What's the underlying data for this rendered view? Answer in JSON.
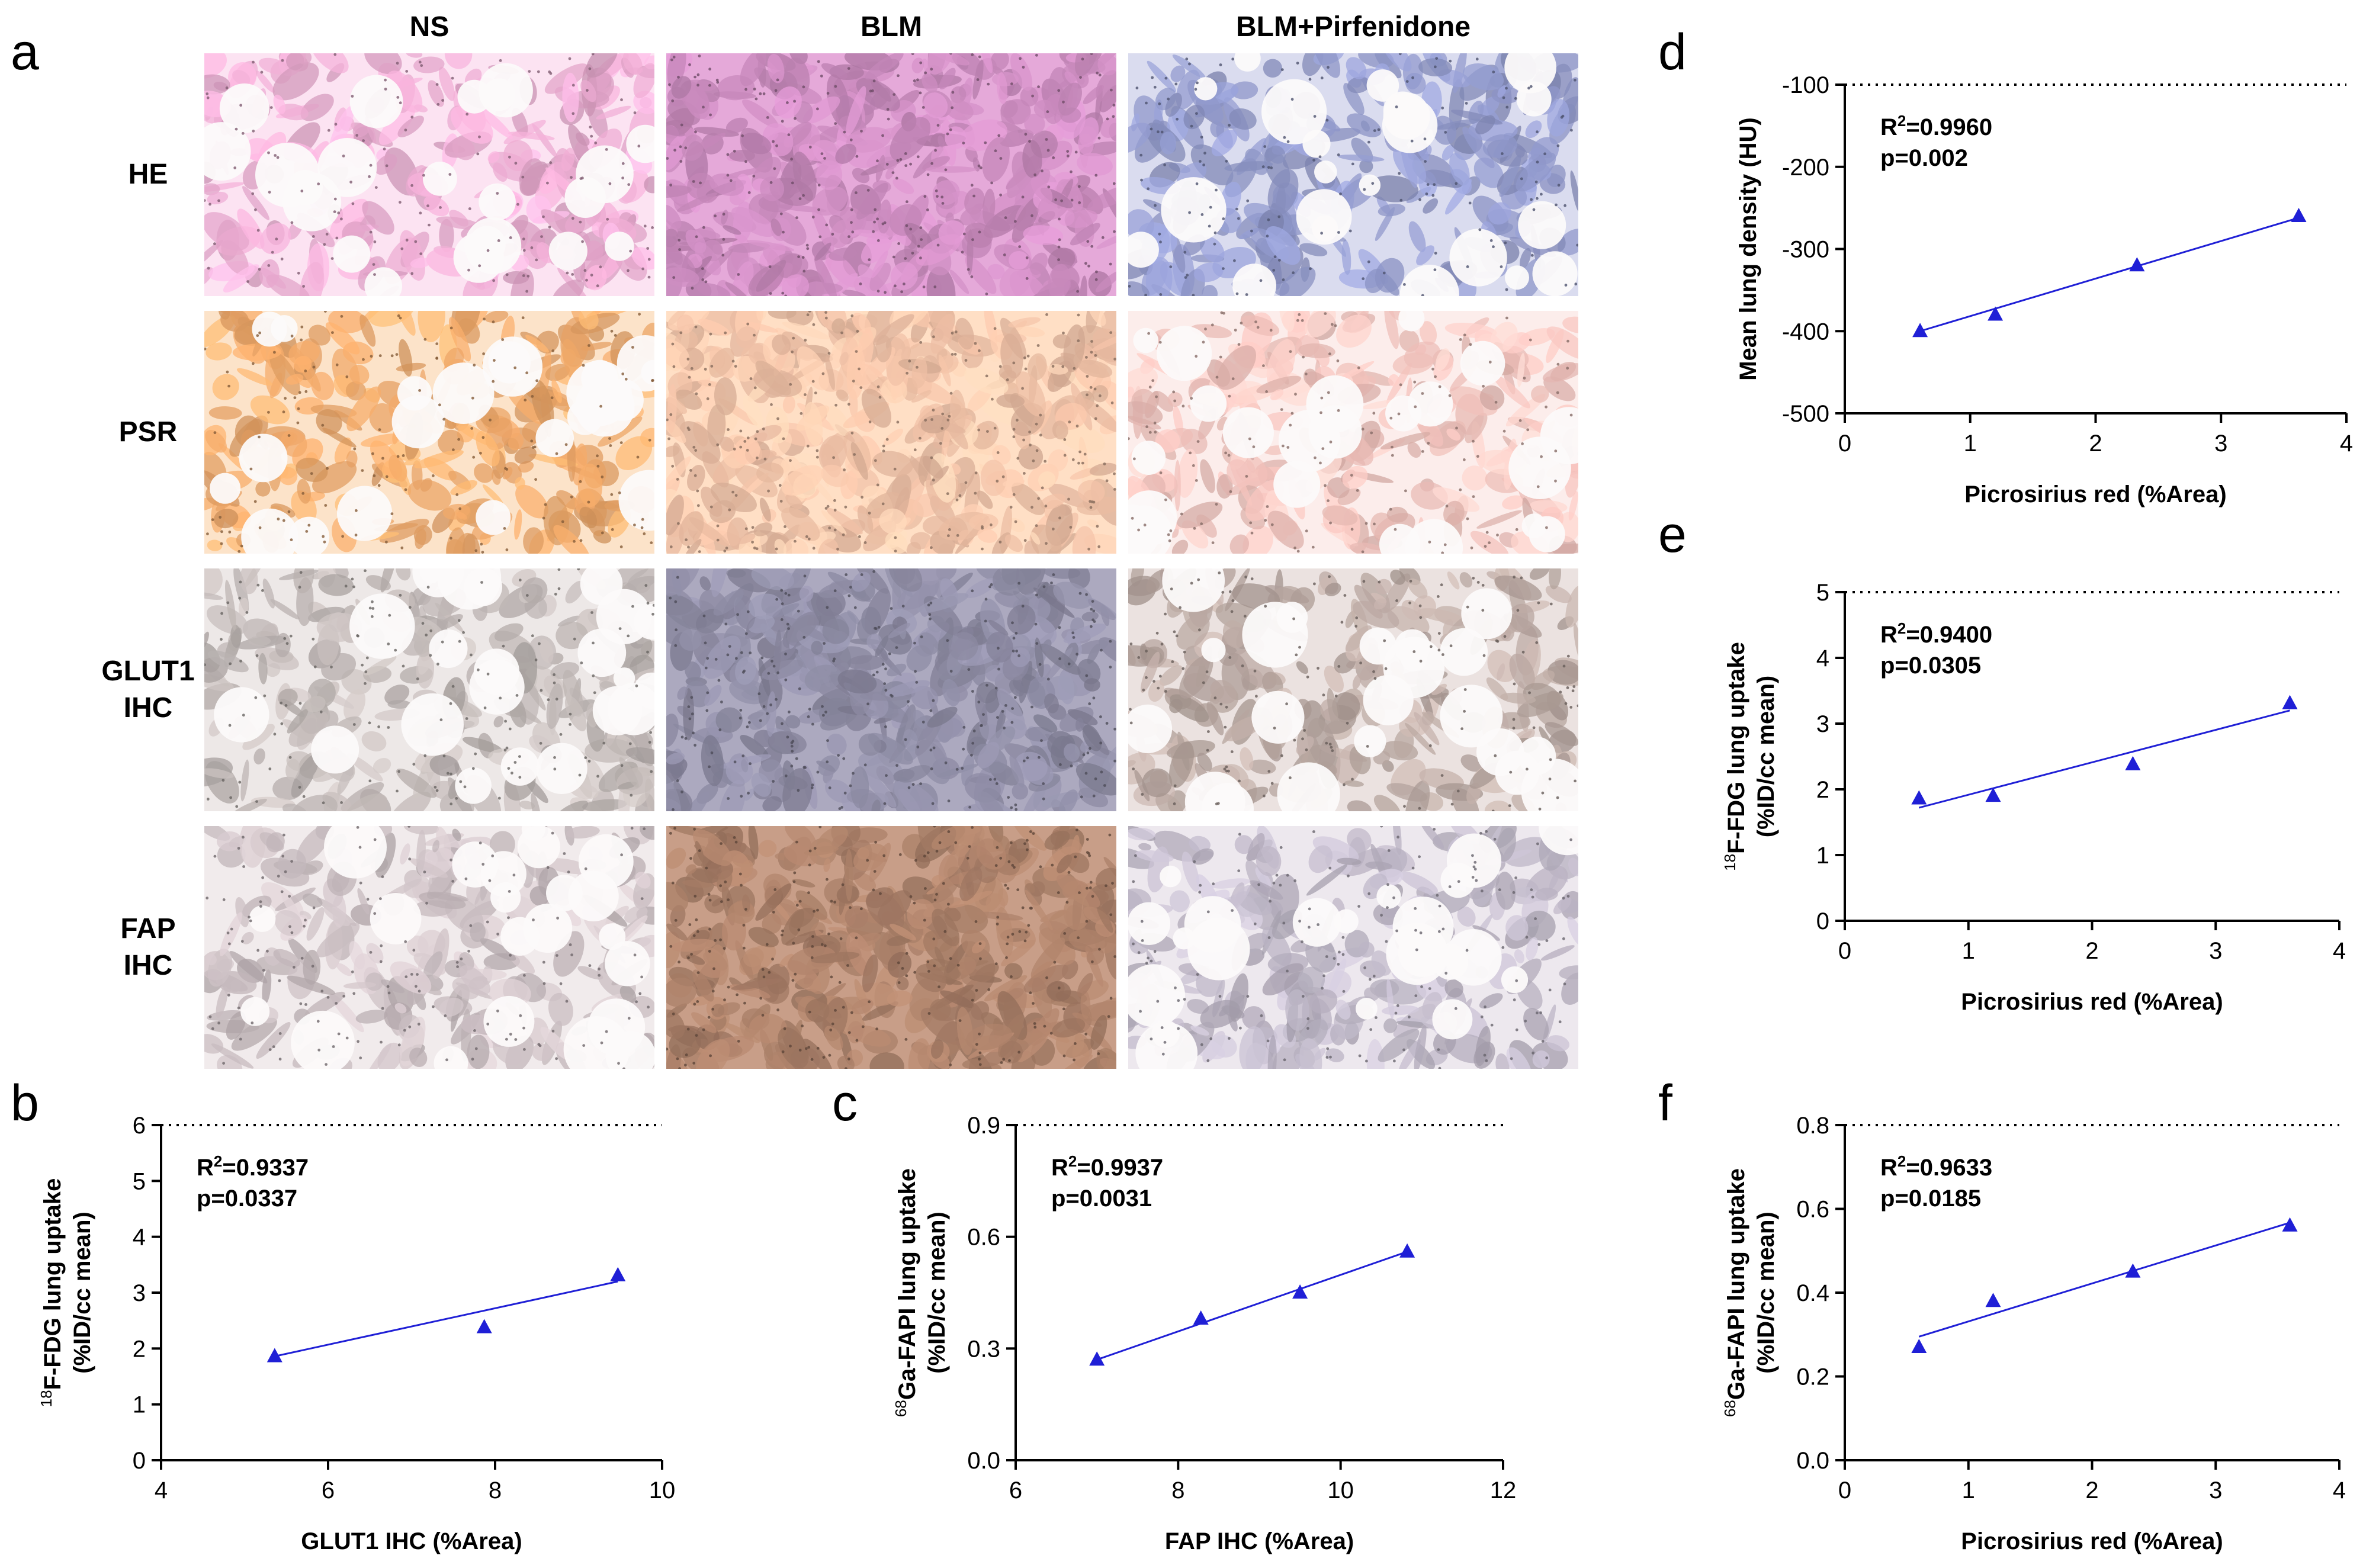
{
  "panel_letters": {
    "a": "a",
    "b": "b",
    "c": "c",
    "d": "d",
    "e": "e",
    "f": "f"
  },
  "histology": {
    "columns": [
      "NS",
      "BLM",
      "BLM+Pirfenidone"
    ],
    "rows": [
      {
        "lines": [
          "HE"
        ]
      },
      {
        "lines": [
          "PSR"
        ]
      },
      {
        "lines": [
          "GLUT1",
          "IHC"
        ]
      },
      {
        "lines": [
          "FAP",
          "IHC"
        ]
      }
    ],
    "colors": {
      "HE": [
        "#e9a9cf",
        "#c98abd",
        "#8e96c8"
      ],
      "PSR": [
        "#f0a868",
        "#f3c3a8",
        "#f3c2bc"
      ],
      "GLUT1": [
        "#bdb5b3",
        "#8c8aa2",
        "#b9a7a1"
      ],
      "FAP": [
        "#c8bcc0",
        "#aa7f68",
        "#bdb6c6"
      ]
    }
  },
  "chart_data": [
    {
      "id": "b",
      "type": "scatter",
      "x": [
        5.36,
        7.87,
        9.47
      ],
      "y": [
        1.86,
        2.38,
        3.31
      ],
      "fit": {
        "x1": 5.36,
        "y1": 1.86,
        "x2": 9.47,
        "y2": 3.2
      },
      "xlim": [
        4,
        10
      ],
      "ylim": [
        0,
        6
      ],
      "xticks": [
        "4",
        "6",
        "8",
        "10"
      ],
      "yticks": [
        "0",
        "1",
        "2",
        "3",
        "4",
        "5",
        "6"
      ],
      "xlabel": "GLUT1 IHC (%Area)",
      "ylabel_sup": "18",
      "ylabel_line1": "F-FDG lung uptake",
      "ylabel_line2": "(%ID/cc mean)",
      "r2_value": "=0.9337",
      "p_text": "p=0.0337",
      "series_color": "#1f1fd6"
    },
    {
      "id": "c",
      "type": "scatter",
      "x": [
        7.0,
        8.28,
        9.5,
        10.82
      ],
      "y": [
        0.27,
        0.38,
        0.45,
        0.56
      ],
      "fit": {
        "x1": 7.0,
        "y1": 0.27,
        "x2": 10.82,
        "y2": 0.56
      },
      "xlim": [
        6,
        12
      ],
      "ylim": [
        0,
        0.9
      ],
      "xticks": [
        "6",
        "8",
        "10",
        "12"
      ],
      "yticks": [
        "0.0",
        "0.3",
        "0.6",
        "0.9"
      ],
      "xlabel": "FAP IHC (%Area)",
      "ylabel_sup": "68",
      "ylabel_line1": "Ga-FAPI lung uptake",
      "ylabel_line2": "(%ID/cc mean)",
      "r2_value": "=0.9937",
      "p_text": "p=0.0031",
      "series_color": "#1f1fd6"
    },
    {
      "id": "d",
      "type": "scatter",
      "x": [
        0.6,
        1.2,
        2.33,
        3.62
      ],
      "y": [
        -400,
        -380,
        -320,
        -260
      ],
      "fit": {
        "x1": 0.6,
        "y1": -400,
        "x2": 3.62,
        "y2": -262
      },
      "xlim": [
        0,
        4
      ],
      "ylim": [
        -500,
        -100
      ],
      "xticks": [
        "0",
        "1",
        "2",
        "3",
        "4"
      ],
      "yticks": [
        "-500",
        "-400",
        "-300",
        "-200",
        "-100"
      ],
      "xlabel": "Picrosirius red (%Area)",
      "ylabel_sup": "",
      "ylabel_line1": "Mean lung density (HU)",
      "ylabel_line2": "",
      "r2_value": "=0.9960",
      "p_text": "p=0.002",
      "series_color": "#1f1fd6"
    },
    {
      "id": "e",
      "type": "scatter",
      "x": [
        0.6,
        1.2,
        2.33,
        3.6
      ],
      "y": [
        1.86,
        1.9,
        2.38,
        3.31
      ],
      "fit": {
        "x1": 0.6,
        "y1": 1.72,
        "x2": 3.6,
        "y2": 3.2
      },
      "xlim": [
        0,
        4
      ],
      "ylim": [
        0,
        5
      ],
      "xticks": [
        "0",
        "1",
        "2",
        "3",
        "4"
      ],
      "yticks": [
        "0",
        "1",
        "2",
        "3",
        "4",
        "5"
      ],
      "xlabel": "Picrosirius red (%Area)",
      "ylabel_sup": "18",
      "ylabel_line1": "F-FDG lung uptake",
      "ylabel_line2": "(%ID/cc mean)",
      "r2_value": "=0.9400",
      "p_text": "p=0.0305",
      "series_color": "#1f1fd6"
    },
    {
      "id": "f",
      "type": "scatter",
      "x": [
        0.6,
        1.2,
        2.33,
        3.6
      ],
      "y": [
        0.27,
        0.38,
        0.45,
        0.56
      ],
      "fit": {
        "x1": 0.6,
        "y1": 0.295,
        "x2": 3.6,
        "y2": 0.567
      },
      "xlim": [
        0,
        4
      ],
      "ylim": [
        0,
        0.8
      ],
      "xticks": [
        "0",
        "1",
        "2",
        "3",
        "4"
      ],
      "yticks": [
        "0.0",
        "0.2",
        "0.4",
        "0.6",
        "0.8"
      ],
      "xlabel": "Picrosirius red (%Area)",
      "ylabel_sup": "68",
      "ylabel_line1": "Ga-FAPI lung uptake",
      "ylabel_line2": "(%ID/cc mean)",
      "r2_value": "=0.9633",
      "p_text": "p=0.0185",
      "series_color": "#1f1fd6"
    }
  ]
}
